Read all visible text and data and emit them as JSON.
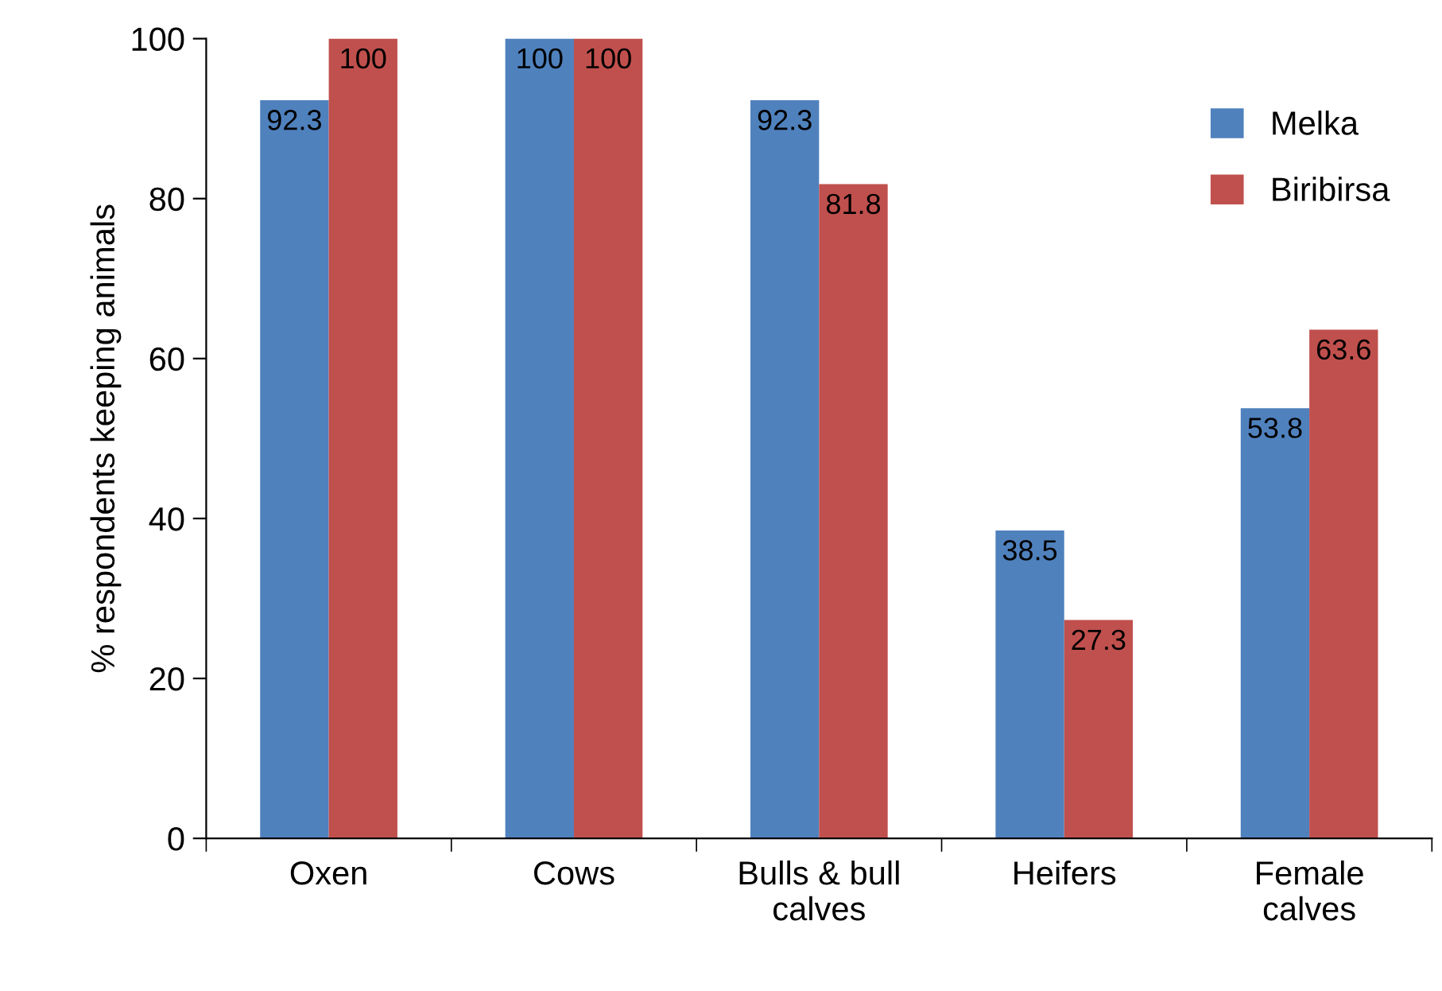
{
  "chart_data": {
    "type": "bar",
    "ylabel": "% respondents keeping animals",
    "categories": [
      "Oxen",
      "Cows",
      "Bulls & bull\ncalves",
      "Heifers",
      "Female\ncalves"
    ],
    "series": [
      {
        "name": "Melka",
        "color": "#4f81bd",
        "values": [
          92.3,
          100,
          92.3,
          38.5,
          53.8
        ]
      },
      {
        "name": "Biribirsa",
        "color": "#c0504d",
        "values": [
          100,
          100,
          81.8,
          27.3,
          63.6
        ]
      }
    ],
    "ylim": [
      0,
      100
    ],
    "yticks": [
      0,
      20,
      40,
      60,
      80,
      100
    ],
    "grid": false,
    "legend": "top right",
    "data_labels": true
  }
}
